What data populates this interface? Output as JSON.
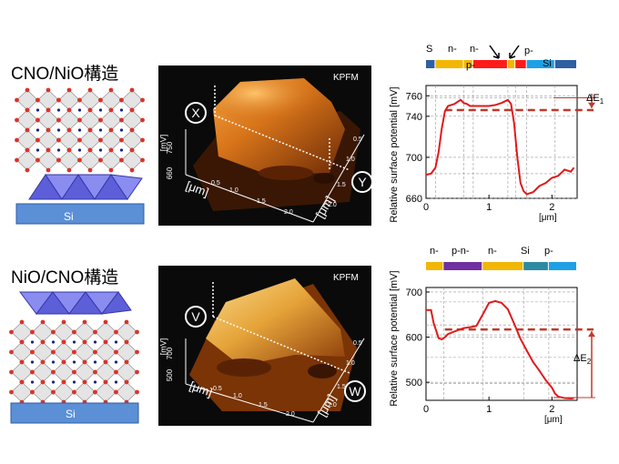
{
  "panels": [
    {
      "structure_label": "CNO/NiO構造",
      "substrate_label": "Si",
      "kpfm": {
        "title": "KPFM",
        "point_a": "X",
        "point_b": "Y",
        "z_axis_label": "[mV]",
        "z_ticks": [
          "660",
          "750"
        ],
        "x_axis_label": "[μm]",
        "x_ticks": [
          "0.5",
          "1.0",
          "1.5",
          "2.0"
        ],
        "y_axis_label": "[μm]",
        "y_ticks": [
          "0.5",
          "1.0",
          "1.5",
          "2.0"
        ]
      },
      "profile": {
        "region_labels": [
          "S",
          "n-",
          "n-",
          "p-",
          "p-",
          "Si"
        ],
        "ylabel": "Relative surface potential",
        "yunit": "[mV]",
        "xunit": "[μm]",
        "delta_label": "ΔE",
        "delta_sub": "1",
        "colors": {
          "curve": "#e01a1a",
          "dashed": "#c0392b",
          "arrow": "#c0392b"
        }
      }
    },
    {
      "structure_label": "NiO/CNO構造",
      "substrate_label": "Si",
      "kpfm": {
        "title": "KPFM",
        "point_a": "V",
        "point_b": "W",
        "z_axis_label": "[mV]",
        "z_ticks": [
          "500",
          "700"
        ],
        "x_axis_label": "[μm]",
        "x_ticks": [
          "0.5",
          "1.0",
          "1.5",
          "2.0"
        ],
        "y_axis_label": "[μm]",
        "y_ticks": [
          "0.5",
          "1.0",
          "1.5",
          "2.0"
        ]
      },
      "profile": {
        "region_labels": [
          "n-",
          "p-n-",
          "n-",
          "Si",
          "p-"
        ],
        "ylabel": "Relative surface potential",
        "yunit": "[mV]",
        "xunit": "[μm]",
        "delta_label": "ΔE",
        "delta_sub": "2",
        "colors": {
          "curve": "#e01a1a",
          "dashed": "#c0392b",
          "arrow": "#c0392b"
        }
      }
    }
  ],
  "chart_data": [
    {
      "type": "line",
      "xlim": [
        0,
        2.4
      ],
      "ylim": [
        660,
        770
      ],
      "x_ticks": [
        0,
        1.0,
        2.0
      ],
      "y_ticks": [
        660,
        700,
        740,
        760
      ],
      "grid": true,
      "region_bar": [
        {
          "label": "S",
          "color": "#2e5fa3",
          "x0": 0.0,
          "x1": 0.15
        },
        {
          "label": "n-",
          "color": "#f2b705",
          "x0": 0.15,
          "x1": 0.6
        },
        {
          "label": "n-",
          "color": "#f2b705",
          "x0": 0.6,
          "x1": 0.75
        },
        {
          "label": "p-",
          "color": "#ff1a1a",
          "x0": 0.75,
          "x1": 1.3
        },
        {
          "label": "",
          "color": "#f2b705",
          "x0": 1.3,
          "x1": 1.42
        },
        {
          "label": "",
          "color": "#ff1a1a",
          "x0": 1.42,
          "x1": 1.6
        },
        {
          "label": "p-",
          "color": "#1ea0e6",
          "x0": 1.6,
          "x1": 2.05
        },
        {
          "label": "Si",
          "color": "#2e5fa3",
          "x0": 2.05,
          "x1": 2.4
        }
      ],
      "series": [
        {
          "x": [
            0.0,
            0.08,
            0.15,
            0.2,
            0.25,
            0.3,
            0.35,
            0.45,
            0.55,
            0.6,
            0.65,
            0.7,
            0.8,
            0.9,
            1.0,
            1.1,
            1.2,
            1.3,
            1.35,
            1.4,
            1.45,
            1.5,
            1.55,
            1.6,
            1.7,
            1.8,
            1.9,
            2.0,
            2.1,
            2.2,
            2.3,
            2.35
          ],
          "y": [
            683,
            684,
            690,
            705,
            728,
            745,
            750,
            752,
            756,
            753,
            752,
            750,
            750,
            750,
            750,
            751,
            753,
            756,
            752,
            733,
            700,
            675,
            667,
            664,
            666,
            672,
            675,
            680,
            682,
            688,
            686,
            690
          ]
        }
      ],
      "dashed_level": 746,
      "gridlines_y": [
        684,
        758
      ]
    },
    {
      "type": "line",
      "xlim": [
        0,
        2.4
      ],
      "ylim": [
        460,
        710
      ],
      "x_ticks": [
        0,
        1.0,
        2.0
      ],
      "y_ticks": [
        500,
        600,
        700
      ],
      "grid": true,
      "region_bar": [
        {
          "label": "n-",
          "color": "#f2b705",
          "x0": 0.0,
          "x1": 0.28
        },
        {
          "label": "p-n-",
          "color": "#7030a0",
          "x0": 0.28,
          "x1": 0.9
        },
        {
          "label": "n-",
          "color": "#f2b705",
          "x0": 0.9,
          "x1": 1.55
        },
        {
          "label": "Si",
          "color": "#2e8aa3",
          "x0": 1.55,
          "x1": 1.95
        },
        {
          "label": "p-",
          "color": "#1ea0e6",
          "x0": 1.95,
          "x1": 2.4
        }
      ],
      "series": [
        {
          "x": [
            0.0,
            0.08,
            0.12,
            0.2,
            0.25,
            0.3,
            0.35,
            0.5,
            0.6,
            0.7,
            0.8,
            0.9,
            1.0,
            1.1,
            1.2,
            1.3,
            1.4,
            1.5,
            1.6,
            1.7,
            1.8,
            1.9,
            2.0,
            2.05,
            2.1,
            2.2,
            2.3,
            2.35
          ],
          "y": [
            660,
            660,
            632,
            598,
            595,
            600,
            607,
            615,
            620,
            622,
            625,
            650,
            676,
            680,
            676,
            662,
            630,
            596,
            570,
            545,
            526,
            505,
            488,
            475,
            468,
            465,
            464,
            465
          ]
        }
      ],
      "dashed_level": 617,
      "gridlines_y": [
        555,
        605,
        627,
        678,
        497
      ]
    }
  ]
}
